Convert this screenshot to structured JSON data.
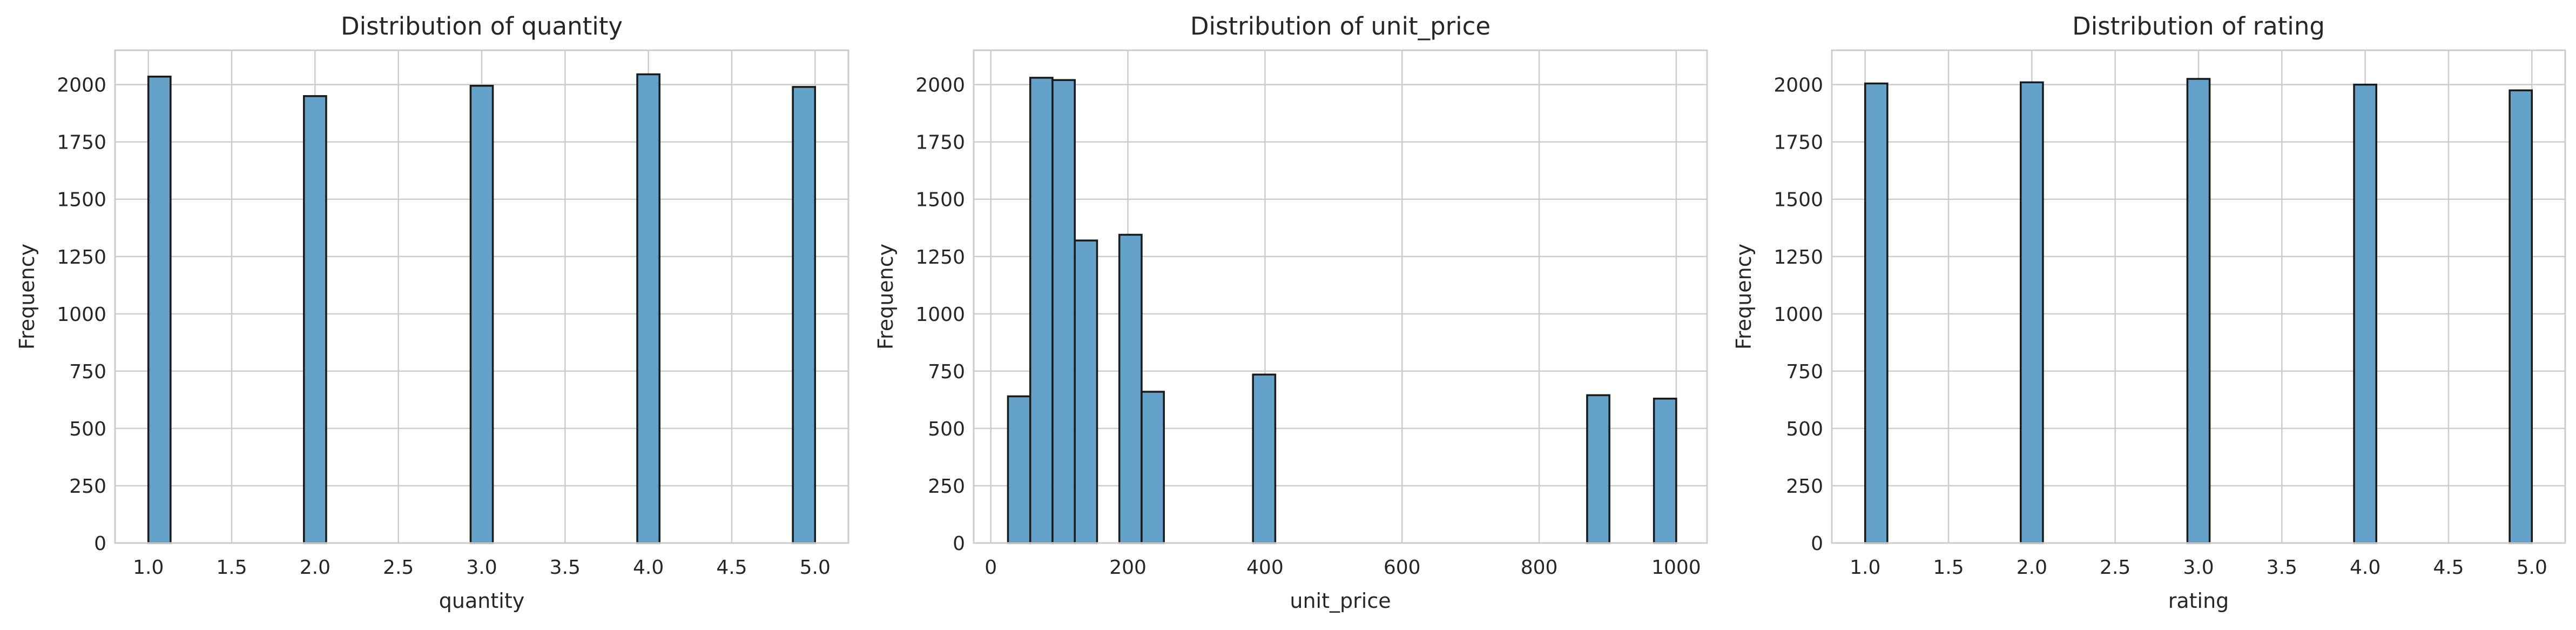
{
  "accent": "#62a0c9",
  "chart_data": [
    {
      "type": "bar",
      "title": "Distribution of quantity",
      "xlabel": "quantity",
      "ylabel": "Frequency",
      "xlim": [
        0.8,
        5.2
      ],
      "ylim": [
        0,
        2150
      ],
      "xticks": [
        1.0,
        1.5,
        2.0,
        2.5,
        3.0,
        3.5,
        4.0,
        4.5,
        5.0
      ],
      "xtick_labels": [
        "1.0",
        "1.5",
        "2.0",
        "2.5",
        "3.0",
        "3.5",
        "4.0",
        "4.5",
        "5.0"
      ],
      "yticks": [
        0,
        250,
        500,
        750,
        1000,
        1250,
        1500,
        1750,
        2000
      ],
      "ytick_labels": [
        "0",
        "250",
        "500",
        "750",
        "1000",
        "1250",
        "1500",
        "1750",
        "2000"
      ],
      "grid": true,
      "bins": [
        {
          "x0": 1.0,
          "x1": 1.1333,
          "value": 2035
        },
        {
          "x0": 1.9333,
          "x1": 2.0667,
          "value": 1950
        },
        {
          "x0": 2.9333,
          "x1": 3.0667,
          "value": 1995
        },
        {
          "x0": 3.9333,
          "x1": 4.0667,
          "value": 2045
        },
        {
          "x0": 4.8667,
          "x1": 5.0,
          "value": 1990
        }
      ]
    },
    {
      "type": "bar",
      "title": "Distribution of unit_price",
      "xlabel": "unit_price",
      "ylabel": "Frequency",
      "xlim": [
        -25,
        1045
      ],
      "ylim": [
        0,
        2150
      ],
      "xticks": [
        0,
        200,
        400,
        600,
        800,
        1000
      ],
      "xtick_labels": [
        "0",
        "200",
        "400",
        "600",
        "800",
        "1000"
      ],
      "yticks": [
        0,
        250,
        500,
        750,
        1000,
        1250,
        1500,
        1750,
        2000
      ],
      "ytick_labels": [
        "0",
        "250",
        "500",
        "750",
        "1000",
        "1250",
        "1500",
        "1750",
        "2000"
      ],
      "grid": true,
      "bins": [
        {
          "x0": 25,
          "x1": 57.5,
          "value": 640
        },
        {
          "x0": 57.5,
          "x1": 90,
          "value": 2030
        },
        {
          "x0": 90,
          "x1": 122.5,
          "value": 2020
        },
        {
          "x0": 122.5,
          "x1": 155,
          "value": 1320
        },
        {
          "x0": 187.5,
          "x1": 220,
          "value": 1345
        },
        {
          "x0": 220,
          "x1": 252.5,
          "value": 660
        },
        {
          "x0": 382.5,
          "x1": 415,
          "value": 735
        },
        {
          "x0": 870,
          "x1": 902.5,
          "value": 645
        },
        {
          "x0": 967.5,
          "x1": 1000,
          "value": 630
        }
      ]
    },
    {
      "type": "bar",
      "title": "Distribution of rating",
      "xlabel": "rating",
      "ylabel": "Frequency",
      "xlim": [
        0.8,
        5.2
      ],
      "ylim": [
        0,
        2150
      ],
      "xticks": [
        1.0,
        1.5,
        2.0,
        2.5,
        3.0,
        3.5,
        4.0,
        4.5,
        5.0
      ],
      "xtick_labels": [
        "1.0",
        "1.5",
        "2.0",
        "2.5",
        "3.0",
        "3.5",
        "4.0",
        "4.5",
        "5.0"
      ],
      "yticks": [
        0,
        250,
        500,
        750,
        1000,
        1250,
        1500,
        1750,
        2000
      ],
      "ytick_labels": [
        "0",
        "250",
        "500",
        "750",
        "1000",
        "1250",
        "1500",
        "1750",
        "2000"
      ],
      "grid": true,
      "bins": [
        {
          "x0": 1.0,
          "x1": 1.1333,
          "value": 2005
        },
        {
          "x0": 1.9333,
          "x1": 2.0667,
          "value": 2010
        },
        {
          "x0": 2.9333,
          "x1": 3.0667,
          "value": 2025
        },
        {
          "x0": 3.9333,
          "x1": 4.0667,
          "value": 2000
        },
        {
          "x0": 4.8667,
          "x1": 5.0,
          "value": 1975
        }
      ]
    }
  ]
}
